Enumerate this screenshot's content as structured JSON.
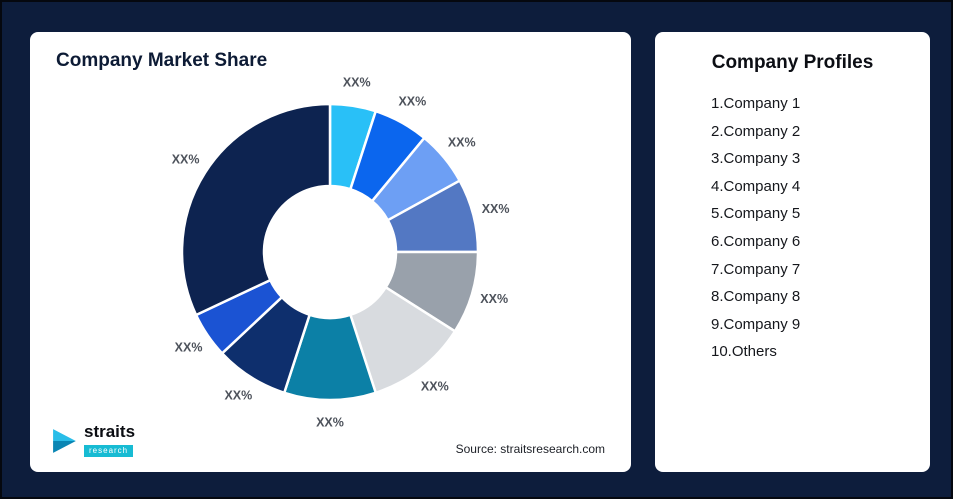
{
  "page": {
    "background": "#0d1d3c"
  },
  "chart_card": {
    "title": "Company Market Share",
    "source": "Source: straitsresearch.com",
    "logo_name": "straits",
    "logo_sub": "research"
  },
  "chart_data": {
    "type": "pie",
    "variant": "donut",
    "title": "Company Market Share",
    "inner_radius_ratio": 0.45,
    "legend_position": "none",
    "value_label_text": "XX%",
    "segments": [
      {
        "name": "segment-1",
        "label": "XX%",
        "value": 5,
        "color": "#29c0f7"
      },
      {
        "name": "segment-2",
        "label": "XX%",
        "value": 6,
        "color": "#0b66ee"
      },
      {
        "name": "segment-3",
        "label": "XX%",
        "value": 6,
        "color": "#6d9ff4"
      },
      {
        "name": "segment-4",
        "label": "XX%",
        "value": 8,
        "color": "#5378c3"
      },
      {
        "name": "segment-5",
        "label": "XX%",
        "value": 9,
        "color": "#99a1ab"
      },
      {
        "name": "segment-6",
        "label": "XX%",
        "value": 11,
        "color": "#d8dbdf"
      },
      {
        "name": "segment-7",
        "label": "XX%",
        "value": 10,
        "color": "#0c80a6"
      },
      {
        "name": "segment-8",
        "label": "XX%",
        "value": 8,
        "color": "#0e2f6d"
      },
      {
        "name": "segment-9",
        "label": "XX%",
        "value": 5,
        "color": "#1b53d3"
      },
      {
        "name": "segment-10",
        "label": "XX%",
        "value": 32,
        "color": "#0d2350"
      }
    ]
  },
  "profiles_card": {
    "title": "Company Profiles",
    "items": [
      "1.Company 1",
      "2.Company 2",
      "3.Company 3",
      "4.Company 4",
      "5.Company 5",
      "6.Company 6",
      "7.Company 7",
      "8.Company 8",
      "9.Company 9",
      "10.Others"
    ]
  }
}
